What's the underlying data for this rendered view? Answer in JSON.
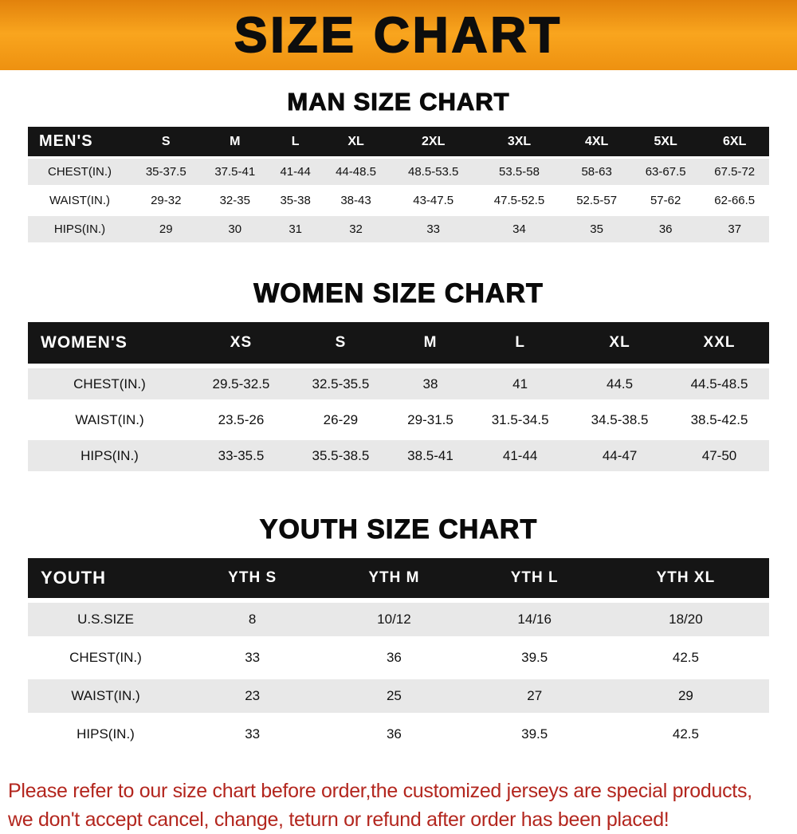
{
  "banner": {
    "title": "SIZE CHART"
  },
  "colors": {
    "banner_orange_top": "#e2820c",
    "banner_orange_mid": "#f9a51e",
    "table_header_black": "#151515",
    "row_alt_gray": "#e8e8e8",
    "notice_red": "#b3261e"
  },
  "sections": [
    {
      "heading": "MAN SIZE CHART",
      "table": {
        "header": [
          "MEN'S",
          "S",
          "M",
          "L",
          "XL",
          "2XL",
          "3XL",
          "4XL",
          "5XL",
          "6XL"
        ],
        "rows": [
          [
            "CHEST(IN.)",
            "35-37.5",
            "37.5-41",
            "41-44",
            "44-48.5",
            "48.5-53.5",
            "53.5-58",
            "58-63",
            "63-67.5",
            "67.5-72"
          ],
          [
            "WAIST(IN.)",
            "29-32",
            "32-35",
            "35-38",
            "38-43",
            "43-47.5",
            "47.5-52.5",
            "52.5-57",
            "57-62",
            "62-66.5"
          ],
          [
            "HIPS(IN.)",
            "29",
            "30",
            "31",
            "32",
            "33",
            "34",
            "35",
            "36",
            "37"
          ]
        ]
      }
    },
    {
      "heading": "WOMEN SIZE CHART",
      "table": {
        "header": [
          "WOMEN'S",
          "XS",
          "S",
          "M",
          "L",
          "XL",
          "XXL"
        ],
        "rows": [
          [
            "CHEST(IN.)",
            "29.5-32.5",
            "32.5-35.5",
            "38",
            "41",
            "44.5",
            "44.5-48.5"
          ],
          [
            "WAIST(IN.)",
            "23.5-26",
            "26-29",
            "29-31.5",
            "31.5-34.5",
            "34.5-38.5",
            "38.5-42.5"
          ],
          [
            "HIPS(IN.)",
            "33-35.5",
            "35.5-38.5",
            "38.5-41",
            "41-44",
            "44-47",
            "47-50"
          ]
        ]
      }
    },
    {
      "heading": "YOUTH SIZE CHART",
      "table": {
        "header": [
          "YOUTH",
          "YTH S",
          "YTH M",
          "YTH L",
          "YTH XL"
        ],
        "rows": [
          [
            "U.S.SIZE",
            "8",
            "10/12",
            "14/16",
            "18/20"
          ],
          [
            "CHEST(IN.)",
            "33",
            "36",
            "39.5",
            "42.5"
          ],
          [
            "WAIST(IN.)",
            "23",
            "25",
            "27",
            "29"
          ],
          [
            "HIPS(IN.)",
            "33",
            "36",
            "39.5",
            "42.5"
          ]
        ]
      }
    }
  ],
  "footer": {
    "line1": "Please refer to our size chart before order,the customized jerseys are special products,",
    "line2": "we don't accept cancel, change, teturn or refund after order has been placed!"
  }
}
